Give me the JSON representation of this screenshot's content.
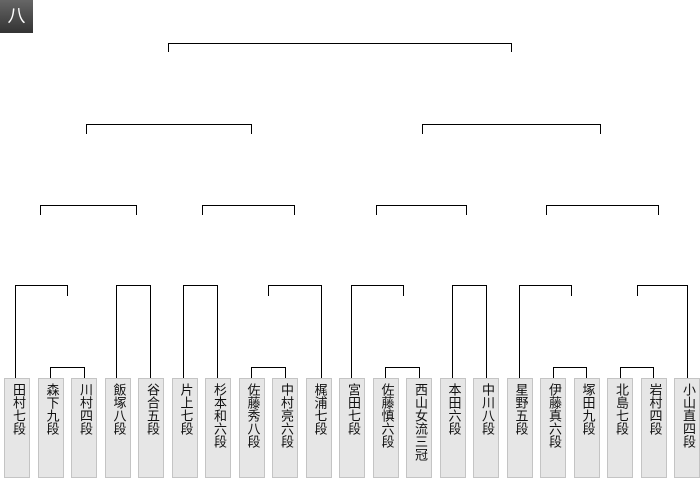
{
  "badge": "八",
  "players": [
    "田村七段",
    "森下九段",
    "川村四段",
    "飯塚八段",
    "谷合五段",
    "片上七段",
    "杉本和六段",
    "佐藤秀八段",
    "中村亮六段",
    "梶浦七段",
    "宮田七段",
    "佐藤慎六段",
    "西山女流三冠",
    "本田六段",
    "中川八段",
    "星野五段",
    "伊藤真六段",
    "塚田九段",
    "北島七段",
    "岩村四段",
    "小山直四段"
  ]
}
